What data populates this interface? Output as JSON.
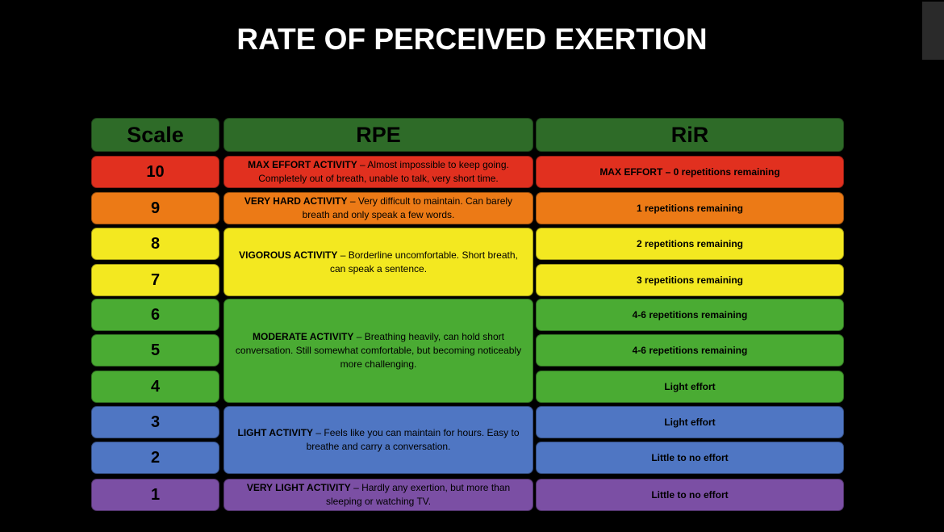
{
  "title": "RATE OF PERCEIVED EXERTION",
  "table": {
    "header": [
      "Scale",
      "RPE",
      "RiR"
    ],
    "scale": [
      10,
      9,
      8,
      7,
      6,
      5,
      4,
      3,
      2,
      1
    ],
    "rpe": [
      {
        "term": "MAX EFFORT ACTIVITY",
        "description": " – Almost impossible to keep going. Completely out of breath, unable to talk, very short time."
      },
      {
        "term": "VERY HARD ACTIVITY",
        "description": " – Very difficult to maintain. Can barely breath and only speak a few words."
      },
      {
        "term": "VIGOROUS ACTIVITY",
        "description": " – Borderline uncomfortable. Short breath, can speak a sentence."
      },
      {
        "term": "MODERATE ACTIVITY",
        "description": " – Breathing heavily, can hold short conversation. Still somewhat comfortable, but becoming noticeably more challenging."
      },
      {
        "term": "LIGHT ACTIVITY",
        "description": " – Feels like you can maintain for hours. Easy to breathe and carry a conversation."
      },
      {
        "term": "VERY LIGHT ACTIVITY",
        "description": " – Hardly any exertion, but more than sleeping or watching TV."
      }
    ],
    "rir": [
      "MAX EFFORT – 0 repetitions remaining",
      "1 repetitions remaining",
      "2 repetitions remaining",
      "3 repetitions remaining",
      "4-6 repetitions remaining",
      "4-6 repetitions remaining",
      "Light effort",
      "Light effort",
      "Little to no effort",
      "Little to no effort"
    ]
  }
}
